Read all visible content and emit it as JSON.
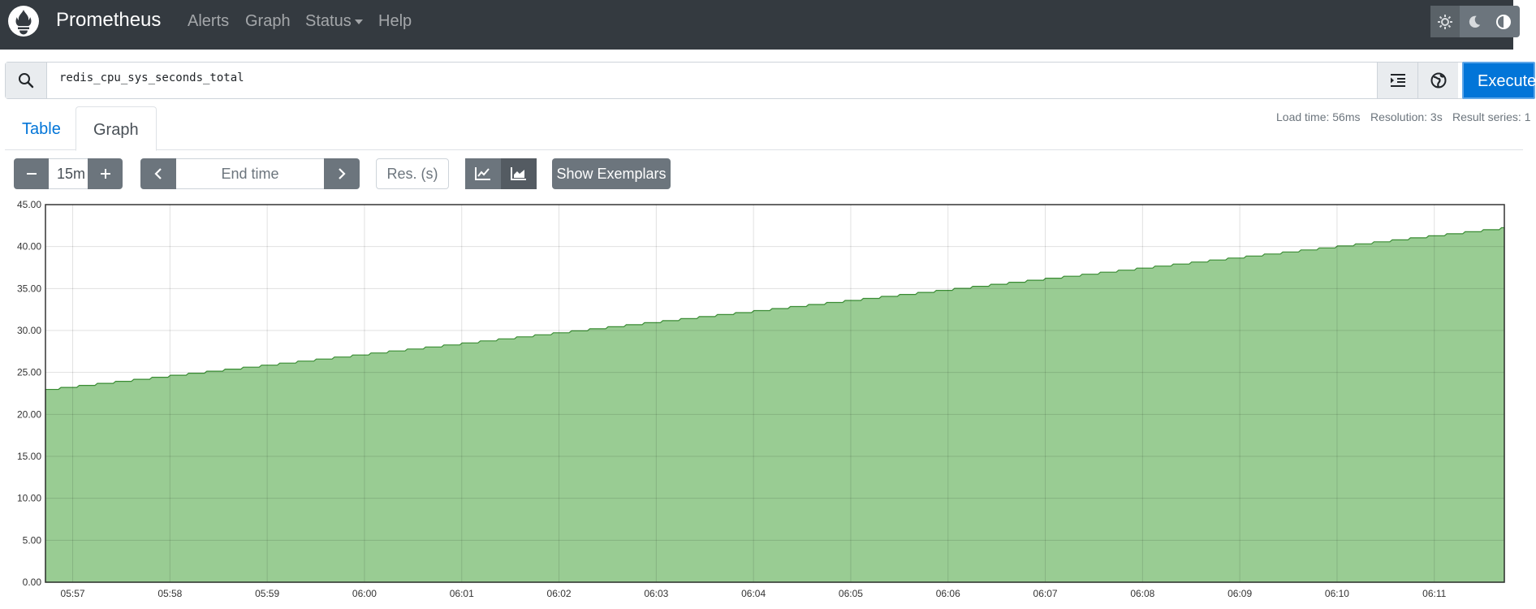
{
  "navbar": {
    "brand": "Prometheus",
    "items": [
      "Alerts",
      "Graph",
      "Status",
      "Help"
    ],
    "theme_buttons": [
      "sun-icon",
      "moon-icon",
      "contrast-icon"
    ]
  },
  "expression": {
    "query": "redis_cpu_sys_seconds_total",
    "execute_label": "Execute"
  },
  "tabs": {
    "table": "Table",
    "graph": "Graph",
    "active": "Graph"
  },
  "stats": {
    "load_time": "Load time: 56ms",
    "resolution": "Resolution: 3s",
    "result_series": "Result series: 1"
  },
  "controls": {
    "range_value": "15m",
    "end_time_placeholder": "End time",
    "resolution_placeholder": "Res. (s)",
    "show_exemplars": "Show Exemplars",
    "stacked_active": true
  },
  "colors": {
    "series_fill": "#99cc93",
    "series_line": "#3a8c34",
    "primary": "#0275d8",
    "navbar": "#343a40"
  },
  "chart_data": {
    "type": "area",
    "ylim": [
      0,
      45
    ],
    "yticks": [
      "0.00",
      "5.00",
      "10.00",
      "15.00",
      "20.00",
      "25.00",
      "30.00",
      "35.00",
      "40.00",
      "45.00"
    ],
    "xticks": [
      "05:57",
      "05:58",
      "05:59",
      "06:00",
      "06:01",
      "06:02",
      "06:03",
      "06:04",
      "06:05",
      "06:06",
      "06:07",
      "06:08",
      "06:09",
      "06:10",
      "06:11"
    ],
    "x_start_min": 356.72,
    "x_end_min": 371.72,
    "x_tick_min_start": 357,
    "series": [
      {
        "start": 22.98,
        "end": 42.25,
        "steps": 80
      }
    ],
    "grid": true
  }
}
